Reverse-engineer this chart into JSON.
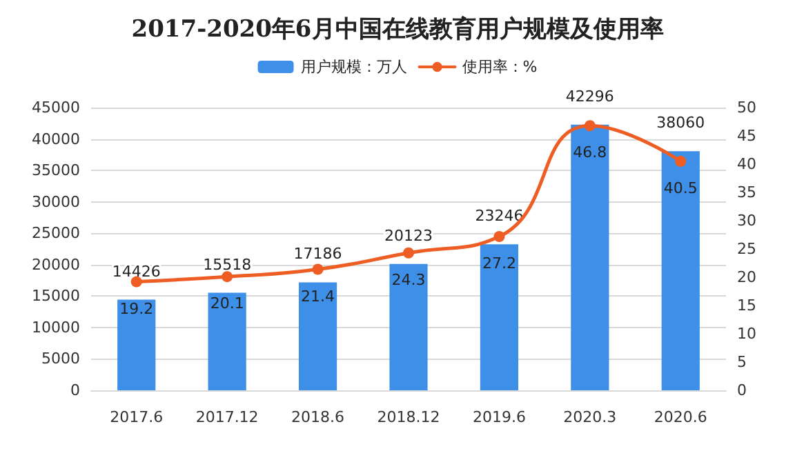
{
  "chart_data": {
    "type": "bar",
    "title": "2017-2020年6月中国在线教育用户规模及使用率",
    "categories": [
      "2017.6",
      "2017.12",
      "2018.6",
      "2018.12",
      "2019.6",
      "2020.3",
      "2020.6"
    ],
    "series": [
      {
        "name": "用户规模：万人",
        "color": "#3d8fe8",
        "values": [
          14426,
          15518,
          17186,
          20123,
          23246,
          42296,
          38060
        ]
      },
      {
        "name": "使用率：%",
        "type": "line",
        "axis": "y2",
        "color": "#ee5d24",
        "values": [
          19.2,
          20.1,
          21.4,
          24.3,
          27.2,
          46.8,
          40.5
        ]
      }
    ],
    "ylim": [
      0,
      45000
    ],
    "yticks": [
      0,
      5000,
      10000,
      15000,
      20000,
      25000,
      30000,
      35000,
      40000,
      45000
    ],
    "y2lim": [
      0,
      50
    ],
    "y2ticks": [
      0,
      5,
      10,
      15,
      20,
      25,
      30,
      35,
      40,
      45,
      50
    ],
    "grid": "y",
    "legend": "top",
    "marker": "circle",
    "line_style": "solid",
    "data_labels": true
  }
}
